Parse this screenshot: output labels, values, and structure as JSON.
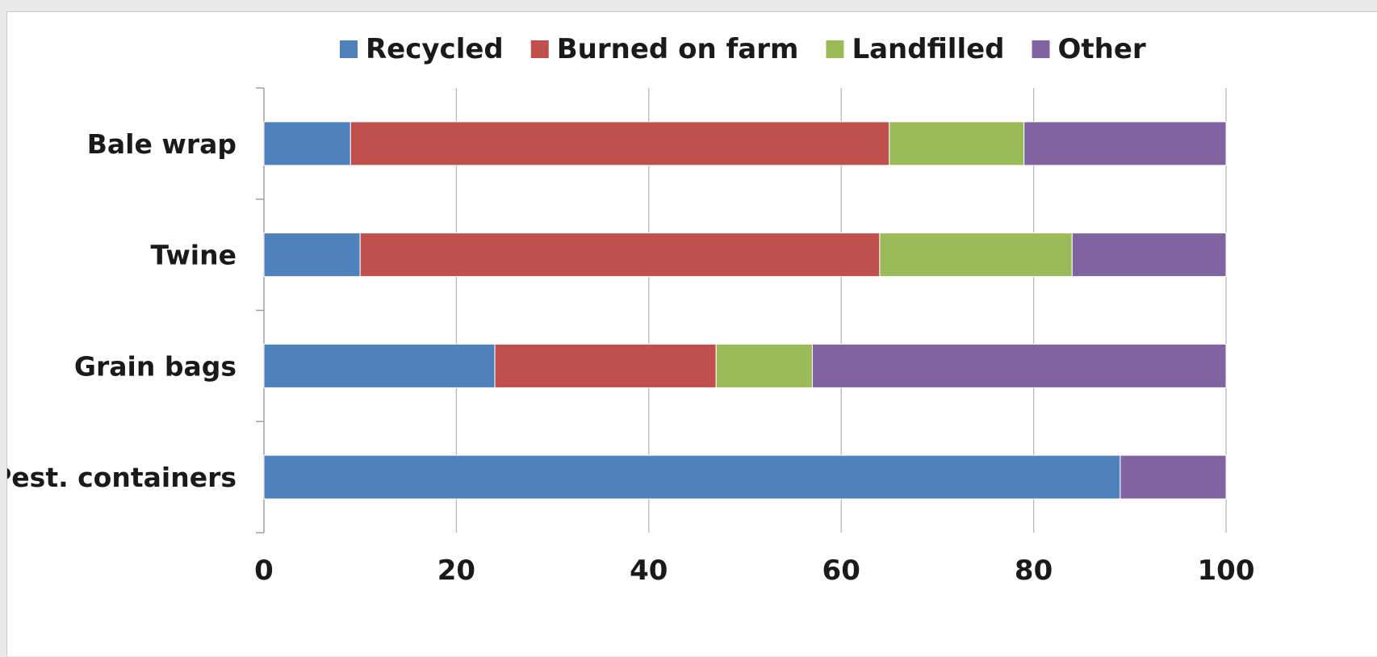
{
  "chart_data": {
    "type": "bar",
    "orientation": "horizontal",
    "stacked": true,
    "categories": [
      "Bale wrap",
      "Twine",
      "Grain bags",
      "Pest. containers"
    ],
    "series": [
      {
        "name": "Recycled",
        "color": "#4f81bd",
        "values": [
          9,
          10,
          24,
          89
        ]
      },
      {
        "name": "Burned on farm",
        "color": "#c0504d",
        "values": [
          56,
          54,
          23,
          0
        ]
      },
      {
        "name": "Landfilled",
        "color": "#9bbb59",
        "values": [
          14,
          20,
          10,
          0
        ]
      },
      {
        "name": "Other",
        "color": "#8064a2",
        "values": [
          21,
          16,
          43,
          11
        ]
      }
    ],
    "xlim": [
      0,
      100
    ],
    "xticks": [
      "0",
      "20",
      "40",
      "60",
      "80",
      "100"
    ],
    "xlabel": "",
    "ylabel": "",
    "title": "",
    "grid": "vertical",
    "legend": "top"
  }
}
